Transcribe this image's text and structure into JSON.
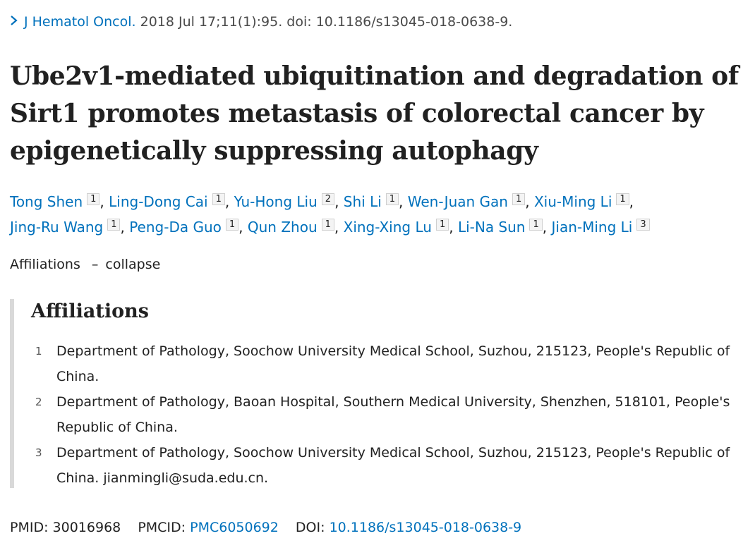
{
  "citation": {
    "journal": "J Hematol Oncol.",
    "details": "2018 Jul 17;11(1):95. doi: 10.1186/s13045-018-0638-9."
  },
  "title": "Ube2v1-mediated ubiquitination and degradation of Sirt1 promotes metastasis of colorectal cancer by epigenetically suppressing autophagy",
  "authors": [
    {
      "name": "Tong Shen",
      "aff": "1"
    },
    {
      "name": "Ling-Dong Cai",
      "aff": "1"
    },
    {
      "name": "Yu-Hong Liu",
      "aff": "2"
    },
    {
      "name": "Shi Li",
      "aff": "1"
    },
    {
      "name": "Wen-Juan Gan",
      "aff": "1"
    },
    {
      "name": "Xiu-Ming Li",
      "aff": "1"
    },
    {
      "name": "Jing-Ru Wang",
      "aff": "1"
    },
    {
      "name": "Peng-Da Guo",
      "aff": "1"
    },
    {
      "name": "Qun Zhou",
      "aff": "1"
    },
    {
      "name": "Xing-Xing Lu",
      "aff": "1"
    },
    {
      "name": "Li-Na Sun",
      "aff": "1"
    },
    {
      "name": "Jian-Ming Li",
      "aff": "3"
    }
  ],
  "affiliations_toggle": {
    "label": "Affiliations",
    "dash": "–",
    "action": "collapse"
  },
  "affiliations": {
    "heading": "Affiliations",
    "items": [
      {
        "num": "1",
        "text": "Department of Pathology, Soochow University Medical School, Suzhou, 215123, People's Republic of China."
      },
      {
        "num": "2",
        "text": "Department of Pathology, Baoan Hospital, Southern Medical University, Shenzhen, 518101, People's Republic of China."
      },
      {
        "num": "3",
        "text": "Department of Pathology, Soochow University Medical School, Suzhou, 215123, People's Republic of China. jianmingli@suda.edu.cn."
      }
    ]
  },
  "identifiers": {
    "pmid_label": "PMID:",
    "pmid": "30016968",
    "pmcid_label": "PMCID:",
    "pmcid": "PMC6050692",
    "doi_label": "DOI:",
    "doi": "10.1186/s13045-018-0638-9"
  },
  "colors": {
    "link": "#0071bc",
    "text": "#212121",
    "border": "#d9d9d9"
  },
  "icons": {
    "breadcrumb": "chevron-right-icon"
  }
}
